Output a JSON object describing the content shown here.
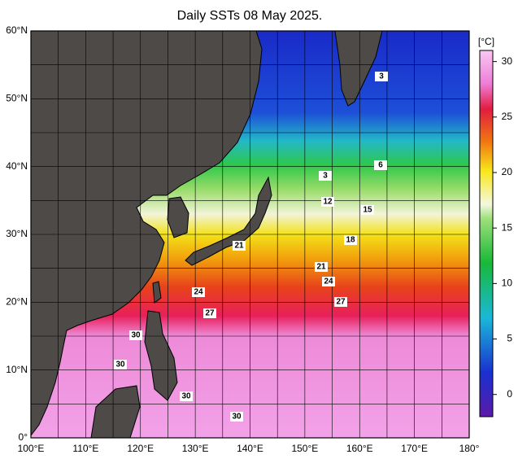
{
  "title": "Daily SSTs 08 May 2025.",
  "lat_labels": [
    {
      "value": 60,
      "label": "60°N"
    },
    {
      "value": 50,
      "label": "50°N"
    },
    {
      "value": 40,
      "label": "40°N"
    },
    {
      "value": 30,
      "label": "30°N"
    },
    {
      "value": 20,
      "label": "20°N"
    },
    {
      "value": 10,
      "label": "10°N"
    },
    {
      "value": 0,
      "label": "0°"
    }
  ],
  "lon_labels": [
    {
      "value": 100,
      "label": "100°E"
    },
    {
      "value": 110,
      "label": "110°E"
    },
    {
      "value": 120,
      "label": "120°E"
    },
    {
      "value": 130,
      "label": "130°E"
    },
    {
      "value": 140,
      "label": "140°E"
    },
    {
      "value": 150,
      "label": "150°E"
    },
    {
      "value": 160,
      "label": "160°E"
    },
    {
      "value": 170,
      "label": "170°E"
    },
    {
      "value": 180,
      "label": "180°"
    }
  ],
  "colorbar": {
    "unit": "[°C]",
    "range": [
      -2,
      31
    ],
    "ticks": [
      0,
      5,
      10,
      15,
      20,
      25,
      30
    ]
  },
  "contour_labels": [
    "3",
    "6",
    "3",
    "12",
    "15",
    "18",
    "21",
    "21",
    "24",
    "24",
    "27",
    "27",
    "30",
    "30",
    "30",
    "30"
  ]
}
